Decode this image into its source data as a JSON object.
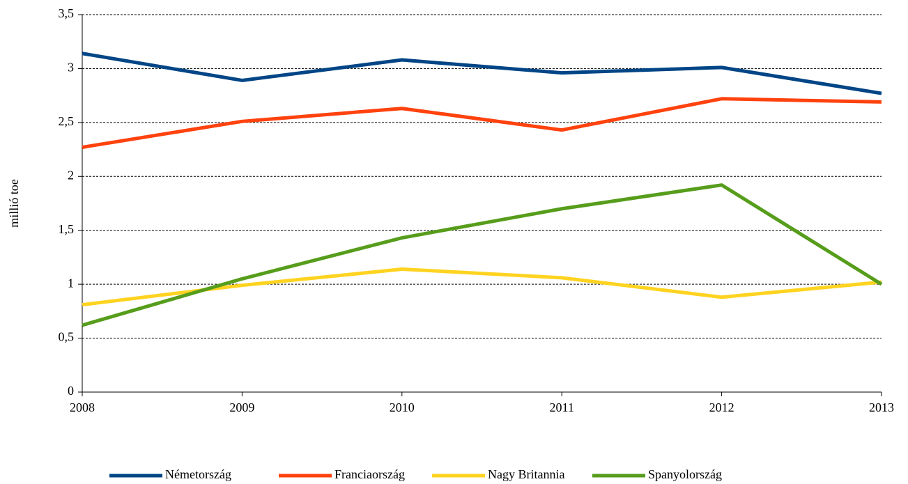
{
  "chart_data": {
    "type": "line",
    "y_label": "millió toe",
    "x": [
      2008,
      2009,
      2010,
      2011,
      2012,
      2013
    ],
    "xlim": [
      2008,
      2013
    ],
    "xticks": [
      2008,
      2009,
      2010,
      2011,
      2012,
      2013
    ],
    "ylim": [
      0,
      3.5
    ],
    "yticks": [
      0,
      {
        "value": 0.5,
        "label": "0,5"
      },
      1,
      {
        "value": 1.5,
        "label": "1,5"
      },
      2,
      {
        "value": 2.5,
        "label": "2,5"
      },
      3,
      {
        "value": 3.5,
        "label": "3,5"
      }
    ],
    "grid": true,
    "legend": "bottom",
    "series": [
      {
        "name": "Németország",
        "color": "#004586",
        "values": [
          3.14,
          2.89,
          3.08,
          2.96,
          3.01,
          2.77
        ]
      },
      {
        "name": "Franciaország",
        "color": "#ff420e",
        "values": [
          2.27,
          2.51,
          2.63,
          2.43,
          2.72,
          2.69
        ]
      },
      {
        "name": "Nagy Britannia",
        "color": "#ffd320",
        "values": [
          0.81,
          0.99,
          1.14,
          1.06,
          0.88,
          1.02
        ]
      },
      {
        "name": "Spanyolország",
        "color": "#579d1c",
        "values": [
          0.62,
          1.05,
          1.43,
          1.7,
          1.92,
          1.0
        ]
      }
    ]
  }
}
